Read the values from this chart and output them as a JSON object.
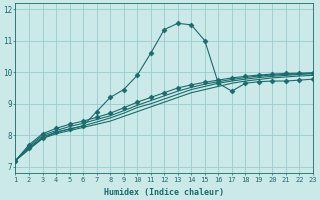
{
  "title": "",
  "xlabel": "Humidex (Indice chaleur)",
  "bg_color": "#cce9e9",
  "grid_color": "#99cccc",
  "line_color": "#1a6b6b",
  "xlim": [
    1,
    23
  ],
  "ylim": [
    6.8,
    12.2
  ],
  "yticks": [
    7,
    8,
    9,
    10,
    11,
    12
  ],
  "xticks": [
    1,
    2,
    3,
    4,
    5,
    6,
    7,
    8,
    9,
    10,
    11,
    12,
    13,
    14,
    15,
    16,
    17,
    18,
    19,
    20,
    21,
    22,
    23
  ],
  "series": [
    [
      7.2,
      7.55,
      7.9,
      8.05,
      8.15,
      8.25,
      8.35,
      8.45,
      8.6,
      8.75,
      8.9,
      9.05,
      9.2,
      9.35,
      9.45,
      9.55,
      9.65,
      9.72,
      9.77,
      9.82,
      9.85,
      9.88,
      9.9
    ],
    [
      7.2,
      7.6,
      7.95,
      8.1,
      8.2,
      8.3,
      8.42,
      8.55,
      8.7,
      8.88,
      9.0,
      9.15,
      9.3,
      9.45,
      9.55,
      9.65,
      9.72,
      9.78,
      9.83,
      9.87,
      9.9,
      9.93,
      9.95
    ],
    [
      7.2,
      7.65,
      8.0,
      8.15,
      8.28,
      8.38,
      8.5,
      8.62,
      8.78,
      8.95,
      9.1,
      9.25,
      9.4,
      9.52,
      9.62,
      9.7,
      9.77,
      9.83,
      9.88,
      9.91,
      9.93,
      9.95,
      9.97
    ],
    [
      7.2,
      7.7,
      8.05,
      8.22,
      8.35,
      8.45,
      8.57,
      8.7,
      8.87,
      9.05,
      9.2,
      9.35,
      9.5,
      9.6,
      9.68,
      9.75,
      9.82,
      9.87,
      9.91,
      9.94,
      9.96,
      9.97,
      9.98
    ],
    [
      7.2,
      7.6,
      7.9,
      8.1,
      8.2,
      8.3,
      8.75,
      9.2,
      9.45,
      9.9,
      10.6,
      11.35,
      11.55,
      11.5,
      11.0,
      9.65,
      9.4,
      9.65,
      9.7,
      9.72,
      9.72,
      9.75,
      9.78
    ]
  ],
  "markers": [
    false,
    false,
    false,
    true,
    true
  ],
  "marker_style": "D",
  "marker_size": 2.5,
  "linewidths": [
    0.8,
    0.8,
    0.8,
    0.8,
    0.8
  ]
}
